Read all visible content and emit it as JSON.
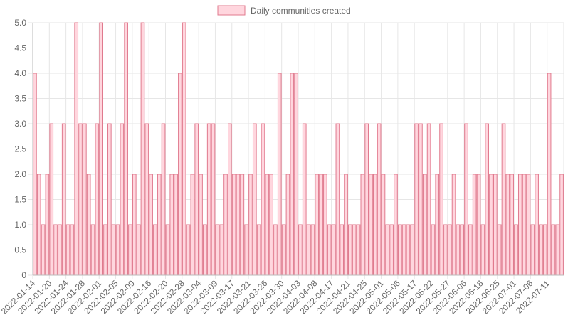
{
  "chart_data": {
    "type": "bar",
    "legend": {
      "label": "Daily communities created",
      "position": "top",
      "fill": "#ffd6de",
      "stroke": "#e07a8e"
    },
    "colors": {
      "bar_fill": "#ffd6de",
      "bar_stroke": "#e07a8e",
      "grid": "#e6e6e6",
      "axis": "#bbbbbb",
      "text": "#666666"
    },
    "grid": true,
    "ylim": [
      0,
      5
    ],
    "yticks": [
      "0",
      "0.5",
      "1.0",
      "1.5",
      "2.0",
      "2.5",
      "3.0",
      "3.5",
      "4.0",
      "4.5",
      "5.0"
    ],
    "xticks": [
      "2022-01-14",
      "2022-01-20",
      "2022-01-24",
      "2022-01-28",
      "2022-02-01",
      "2022-02-05",
      "2022-02-09",
      "2022-02-16",
      "2022-02-20",
      "2022-02-28",
      "2022-03-04",
      "2022-03-09",
      "2022-03-17",
      "2022-03-21",
      "2022-03-26",
      "2022-03-30",
      "2022-04-03",
      "2022-04-08",
      "2022-04-17",
      "2022-04-21",
      "2022-04-25",
      "2022-05-01",
      "2022-05-06",
      "2022-05-17",
      "2022-05-22",
      "2022-05-27",
      "2022-06-06",
      "2022-06-18",
      "2022-06-25",
      "2022-07-01",
      "2022-07-06",
      "2022-07-11"
    ],
    "values": [
      4,
      2,
      1,
      2,
      3,
      1,
      1,
      3,
      1,
      1,
      5,
      3,
      3,
      2,
      1,
      3,
      5,
      1,
      3,
      1,
      1,
      3,
      5,
      1,
      2,
      1,
      5,
      3,
      2,
      1,
      2,
      3,
      1,
      2,
      2,
      4,
      5,
      1,
      2,
      3,
      2,
      1,
      3,
      3,
      1,
      1,
      2,
      3,
      2,
      2,
      2,
      1,
      2,
      3,
      1,
      3,
      2,
      2,
      1,
      4,
      1,
      2,
      4,
      4,
      1,
      3,
      1,
      1,
      2,
      2,
      2,
      1,
      1,
      3,
      1,
      2,
      1,
      1,
      1,
      2,
      3,
      2,
      2,
      3,
      2,
      1,
      1,
      2,
      1,
      1,
      1,
      1,
      3,
      3,
      2,
      3,
      1,
      2,
      3,
      1,
      1,
      2,
      1,
      1,
      3,
      1,
      2,
      2,
      1,
      3,
      2,
      2,
      1,
      3,
      2,
      2,
      1,
      2,
      2,
      2,
      1,
      2,
      1,
      1,
      4,
      1,
      1,
      2
    ]
  }
}
